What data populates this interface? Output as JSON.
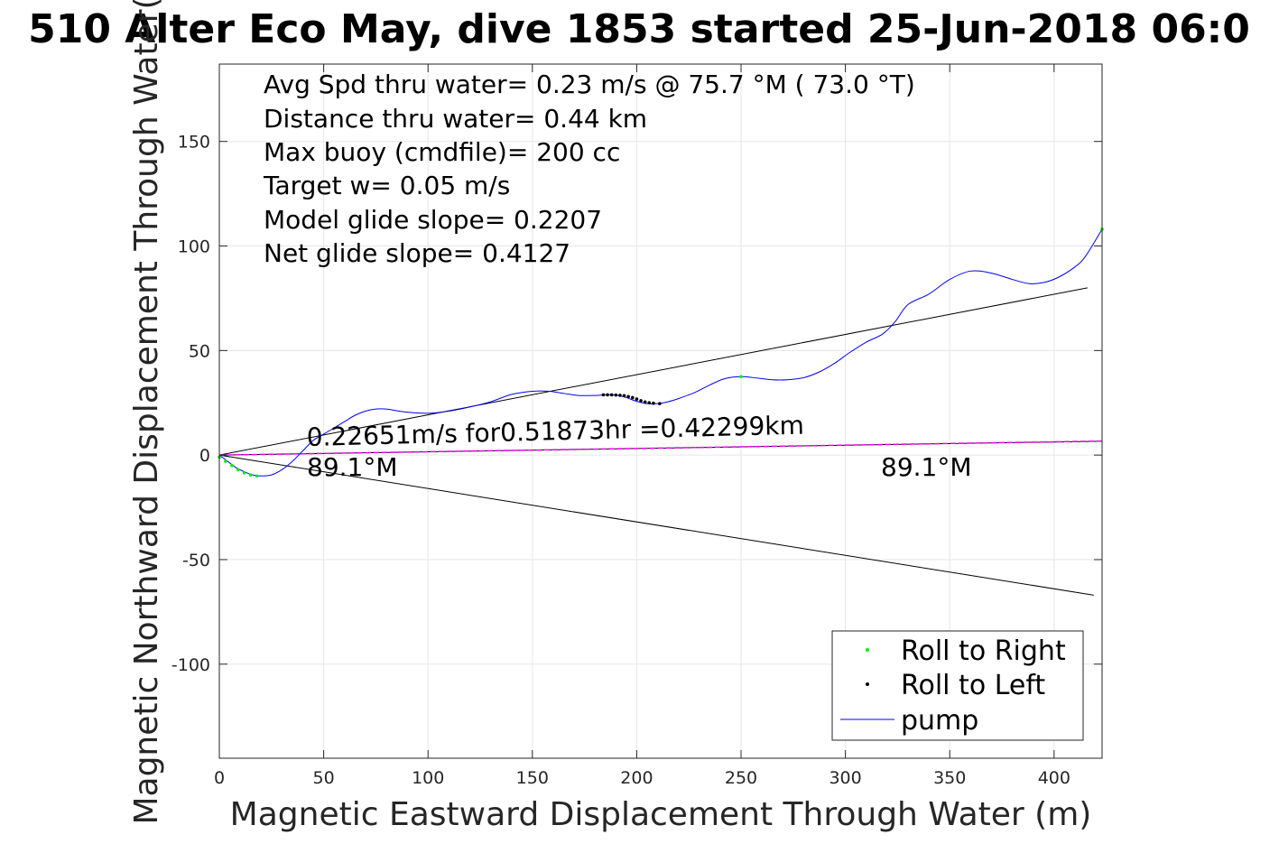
{
  "chart_data": {
    "type": "scatter",
    "title": "510 Alter Eco May, dive 1853 started 25-Jun-2018 06:0",
    "xlabel": "Magnetic Eastward Displacement Through Water (m)",
    "ylabel": "Magnetic Northward Displacement Through Water(",
    "xlim": [
      0,
      423
    ],
    "ylim": [
      -145,
      187
    ],
    "xticks": [
      0,
      50,
      100,
      150,
      200,
      250,
      300,
      350,
      400
    ],
    "yticks": [
      -100,
      -50,
      0,
      50,
      100,
      150
    ],
    "xtick_labels": [
      "0",
      "50",
      "100",
      "150",
      "200",
      "250",
      "300",
      "350",
      "400"
    ],
    "ytick_labels": [
      "-100",
      "-50",
      "0",
      "50",
      "100",
      "150"
    ],
    "grid": true,
    "summary": [
      "Avg Spd thru water=  0.23 m/s @  75.7 °M ( 73.0 °T)",
      "Distance thru water=  0.44 km",
      "Max buoy (cmdfile)= 200 cc",
      "Target w= 0.05 m/s",
      "Model glide slope= 0.2207",
      "Net glide slope= 0.4127"
    ],
    "annotations": {
      "speed": "0.22651m/s for0.51873hr =0.42299km",
      "heading_left": "89.1°M",
      "heading_right": "89.1°M"
    },
    "series": [
      {
        "name": "pump",
        "color": "#0000ff",
        "x": [
          0,
          4,
          8,
          12,
          16,
          20,
          25,
          30,
          35,
          40,
          45,
          50,
          55,
          60,
          65,
          70,
          75,
          80,
          90,
          100,
          110,
          120,
          130,
          140,
          150,
          158,
          165,
          172,
          180,
          185,
          190,
          195,
          200,
          205,
          210,
          215,
          220,
          228,
          235,
          242,
          250,
          258,
          265,
          272,
          280,
          288,
          295,
          302,
          310,
          318,
          324,
          330,
          340,
          350,
          360,
          370,
          380,
          388,
          395,
          402,
          410,
          415,
          423
        ],
        "y": [
          0,
          -3,
          -6,
          -8,
          -9.5,
          -10,
          -9.5,
          -7,
          -3,
          2,
          7,
          10,
          13,
          16,
          19,
          21,
          22,
          22,
          20.5,
          20,
          21,
          23,
          25.5,
          29,
          30.5,
          30.5,
          29.5,
          28.5,
          28.5,
          28.8,
          28.7,
          27.5,
          25.7,
          24.6,
          24.6,
          25.5,
          27,
          30,
          33.5,
          36.5,
          37.5,
          36.8,
          36,
          36,
          37,
          40,
          44,
          49,
          54,
          58,
          64,
          72,
          77,
          84,
          88,
          87,
          84,
          82,
          82.5,
          85,
          90,
          95,
          108
        ]
      },
      {
        "name": "Roll to Right",
        "color": "#00ee00",
        "x": [
          0,
          3,
          6,
          9,
          12,
          15,
          18,
          250,
          423
        ],
        "y": [
          -1,
          -3,
          -5,
          -7,
          -8.5,
          -9.5,
          -10,
          37.5,
          108
        ]
      },
      {
        "name": "Roll to Left",
        "color": "#000000",
        "x": [
          184,
          186,
          188,
          190,
          192,
          194,
          196,
          198,
          200,
          202,
          204,
          206,
          208,
          211
        ],
        "y": [
          28.8,
          28.8,
          28.8,
          28.7,
          28.6,
          28.4,
          28,
          27.5,
          26.8,
          26,
          25.4,
          25,
          24.8,
          24.6
        ]
      }
    ],
    "lines": [
      {
        "name": "upper-envelope",
        "color": "#000000",
        "x": [
          0,
          416
        ],
        "y": [
          0,
          80
        ]
      },
      {
        "name": "lower-envelope",
        "color": "#000000",
        "x": [
          0,
          419
        ],
        "y": [
          0,
          -67
        ]
      },
      {
        "name": "net-track",
        "color": "#000000",
        "x": [
          0,
          423
        ],
        "y": [
          0,
          6.6
        ]
      },
      {
        "name": "model-track",
        "color": "#ff00ff",
        "x": [
          0,
          423
        ],
        "y": [
          0,
          6.7
        ]
      }
    ],
    "legend": {
      "position": "bottom-right",
      "entries": [
        {
          "label": "Roll to Right",
          "color": "#00ee00",
          "style": "dot"
        },
        {
          "label": "Roll to Left",
          "color": "#000000",
          "style": "dot"
        },
        {
          "label": "pump",
          "color": "#0000ff",
          "style": "line"
        }
      ]
    }
  }
}
